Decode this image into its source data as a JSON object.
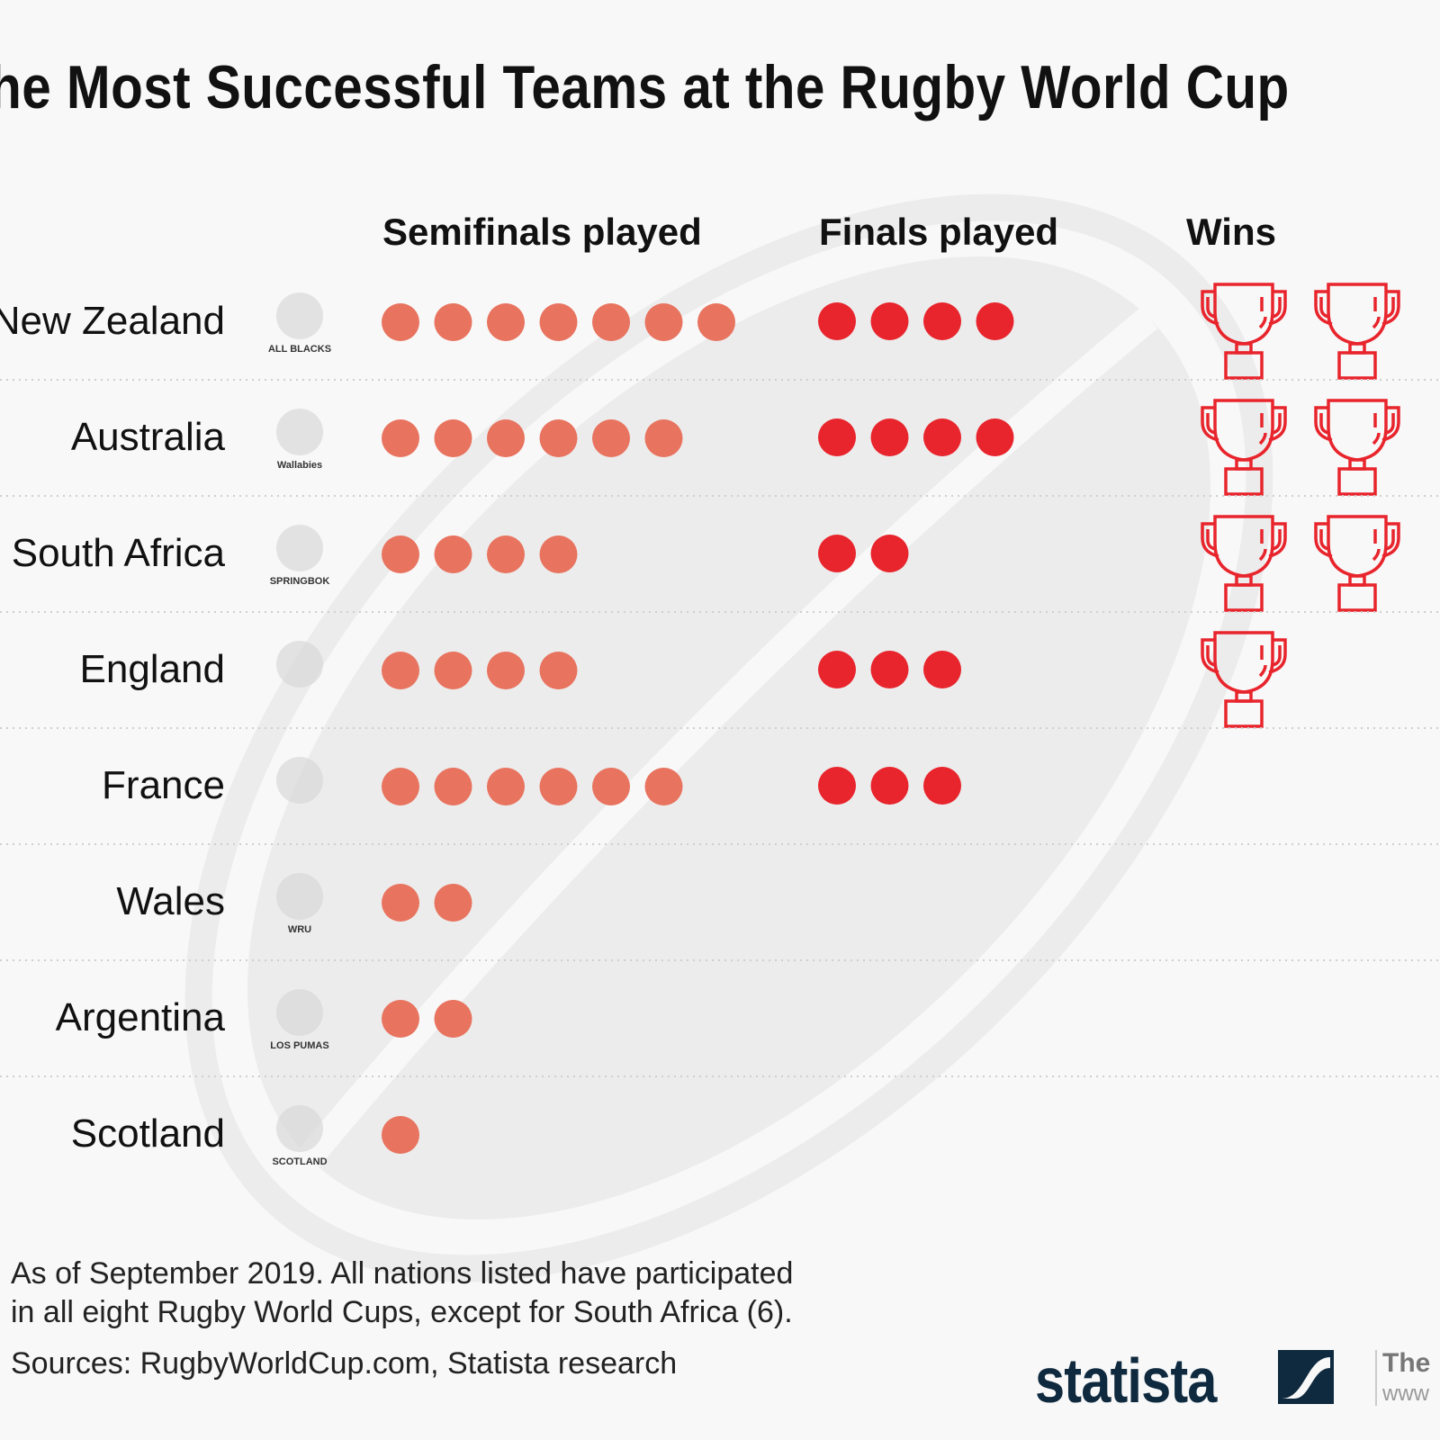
{
  "chart_data": {
    "type": "dot-matrix",
    "title": "The Most Successful Teams at the Rugby World Cup",
    "columns": [
      "Semifinals played",
      "Finals played",
      "Wins"
    ],
    "categories": [
      "New Zealand",
      "Australia",
      "South Africa",
      "England",
      "France",
      "Wales",
      "Argentina",
      "Scotland"
    ],
    "series": [
      {
        "name": "Semifinals played",
        "values": [
          7,
          6,
          4,
          4,
          6,
          2,
          2,
          1
        ]
      },
      {
        "name": "Finals played",
        "values": [
          4,
          4,
          2,
          3,
          3,
          0,
          0,
          0
        ]
      },
      {
        "name": "Wins",
        "values": [
          2,
          2,
          2,
          1,
          0,
          0,
          0,
          0
        ]
      }
    ],
    "team_logos": [
      "ALL BLACKS",
      "Wallabies",
      "SPRINGBOK",
      "",
      "",
      "WRU",
      "LOS PUMAS",
      "SCOTLAND"
    ],
    "colors": {
      "semifinals": "#e8735f",
      "finals": "#e8242c",
      "wins": "#e8242c",
      "background": "#f8f8f8",
      "ball": "#ececec"
    },
    "icons": {
      "wins": "trophy-icon"
    }
  },
  "footnote": {
    "line1": "As of September 2019. All nations listed have participated",
    "line2": "in all eight Rugby World Cups, except for South Africa (6).",
    "sources": "Sources: RugbyWorldCup.com, Statista research"
  },
  "branding": {
    "logo": "statista",
    "tagline_fragment": "The",
    "url_fragment": "www"
  }
}
